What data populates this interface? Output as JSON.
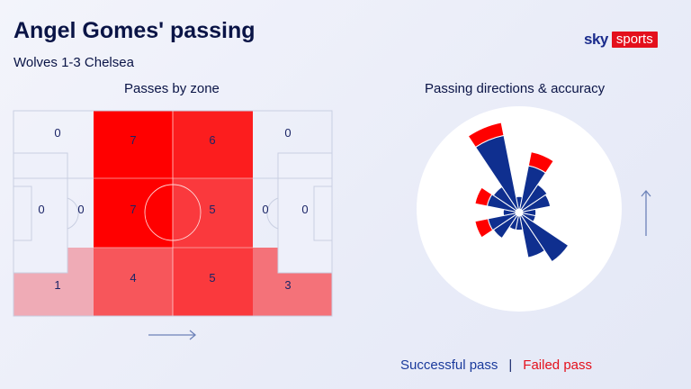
{
  "title": "Angel Gomes' passing",
  "subtitle": "Wolves 1-3 Chelsea",
  "logo": {
    "sky": "sky",
    "sports": "sports"
  },
  "colors": {
    "navy": "#0a1446",
    "success": "#0f2f8f",
    "fail": "#ff0000",
    "zone_max": "#ff0000"
  },
  "chart_data": [
    {
      "type": "heatmap",
      "title": "Passes by zone",
      "direction": "left-to-right",
      "zones": [
        {
          "zone": "left-top",
          "value": 0
        },
        {
          "zone": "left-mid-top",
          "value": 7
        },
        {
          "zone": "right-mid-top",
          "value": 6
        },
        {
          "zone": "right-top",
          "value": 0
        },
        {
          "zone": "left-box",
          "value": 0
        },
        {
          "zone": "left-outside-box",
          "value": 0
        },
        {
          "zone": "left-mid-centre",
          "value": 7
        },
        {
          "zone": "right-mid-centre",
          "value": 5
        },
        {
          "zone": "right-outside-box",
          "value": 0
        },
        {
          "zone": "right-box",
          "value": 0
        },
        {
          "zone": "left-bottom",
          "value": 1
        },
        {
          "zone": "left-mid-bottom",
          "value": 4
        },
        {
          "zone": "right-mid-bottom",
          "value": 5
        },
        {
          "zone": "right-bottom",
          "value": 3
        }
      ]
    },
    {
      "type": "rose",
      "title": "Passing directions & accuracy",
      "direction": "up",
      "sector_count": 16,
      "sectors": [
        {
          "dir": "N",
          "successful": 0.14,
          "failed": 0
        },
        {
          "dir": "NNE",
          "successful": 0.5,
          "failed": 0.16
        },
        {
          "dir": "NE",
          "successful": 0.34,
          "failed": 0
        },
        {
          "dir": "ENE",
          "successful": 0.32,
          "failed": 0
        },
        {
          "dir": "E",
          "successful": 0.15,
          "failed": 0
        },
        {
          "dir": "ESE",
          "successful": 0.15,
          "failed": 0
        },
        {
          "dir": "SE",
          "successful": 0.63,
          "failed": 0
        },
        {
          "dir": "SSE",
          "successful": 0.48,
          "failed": 0
        },
        {
          "dir": "S",
          "successful": 0.16,
          "failed": 0
        },
        {
          "dir": "SSW",
          "successful": 0.16,
          "failed": 0
        },
        {
          "dir": "SW",
          "successful": 0.31,
          "failed": 0
        },
        {
          "dir": "WSW",
          "successful": 0.32,
          "failed": 0.15
        },
        {
          "dir": "W",
          "successful": 0.14,
          "failed": 0
        },
        {
          "dir": "WNW",
          "successful": 0.33,
          "failed": 0.14
        },
        {
          "dir": "NW",
          "successful": 0.31,
          "failed": 0
        },
        {
          "dir": "NNW",
          "successful": 0.85,
          "failed": 0.15
        }
      ],
      "legend": {
        "successful": "Successful pass",
        "separator": "|",
        "failed": "Failed pass"
      }
    }
  ]
}
